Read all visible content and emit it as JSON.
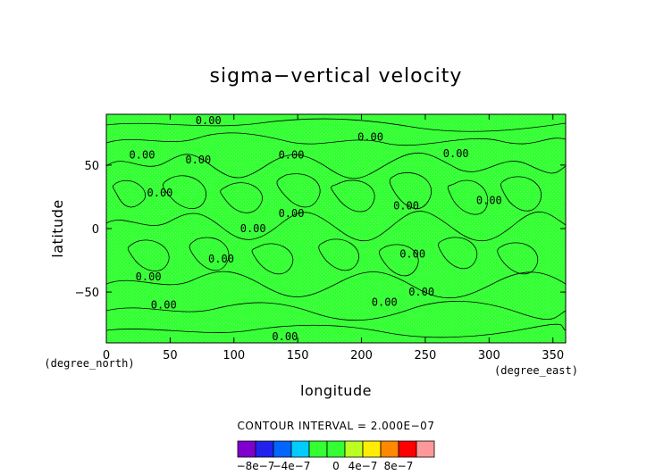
{
  "chart_data": {
    "type": "heatmap",
    "title": "sigma−vertical velocity",
    "xlabel": "longitude",
    "ylabel": "latitude",
    "x_unit": "(degree_east)",
    "y_unit": "(degree_north)",
    "xlim": [
      0,
      360
    ],
    "ylim": [
      -90,
      90
    ],
    "x_ticks": [
      "0",
      "50",
      "100",
      "150",
      "200",
      "250",
      "300",
      "350"
    ],
    "y_ticks": [
      "50",
      "0",
      "−50"
    ],
    "contour_interval_text": "CONTOUR INTERVAL = 2.000E−07",
    "contour_labels": [
      {
        "text": "0.00",
        "lon": 80,
        "lat": 85
      },
      {
        "text": "0.00",
        "lon": 28,
        "lat": 58
      },
      {
        "text": "0.00",
        "lon": 72,
        "lat": 54
      },
      {
        "text": "0.00",
        "lon": 145,
        "lat": 58
      },
      {
        "text": "0.00",
        "lon": 207,
        "lat": 72
      },
      {
        "text": "0.00",
        "lon": 274,
        "lat": 59
      },
      {
        "text": "0.00",
        "lon": 42,
        "lat": 28
      },
      {
        "text": "0.00",
        "lon": 145,
        "lat": 12
      },
      {
        "text": "0.00",
        "lon": 235,
        "lat": 18
      },
      {
        "text": "0.00",
        "lon": 300,
        "lat": 22
      },
      {
        "text": "0.00",
        "lon": 115,
        "lat": 0
      },
      {
        "text": "0.00",
        "lon": 90,
        "lat": -24
      },
      {
        "text": "0.00",
        "lon": 240,
        "lat": -20
      },
      {
        "text": "0.00",
        "lon": 33,
        "lat": -38
      },
      {
        "text": "0.00",
        "lon": 247,
        "lat": -50
      },
      {
        "text": "0.00",
        "lon": 45,
        "lat": -60
      },
      {
        "text": "0.00",
        "lon": 218,
        "lat": -58
      },
      {
        "text": "0.00",
        "lon": 140,
        "lat": -85
      }
    ],
    "colorbar": {
      "levels": [
        -1e-06,
        -8e-07,
        -6e-07,
        -4e-07,
        -2e-07,
        0,
        2e-07,
        4e-07,
        6e-07,
        8e-07,
        1e-06
      ],
      "colors": [
        "#7f00cc",
        "#2222ee",
        "#0066ff",
        "#00ccff",
        "#33ff33",
        "#33ff33",
        "#bbff22",
        "#ffee00",
        "#ff8800",
        "#ff0000",
        "#ff9999"
      ],
      "tick_labels": [
        {
          "text": "−8e−7",
          "value": -8e-07
        },
        {
          "text": "−4e−7",
          "value": -4e-07
        },
        {
          "text": "0",
          "value": 0
        },
        {
          "text": "4e−7",
          "value": 4e-07
        },
        {
          "text": "8e−7",
          "value": 8e-07
        }
      ]
    },
    "field_color": "#33ff33",
    "contour_color": "#000000"
  }
}
